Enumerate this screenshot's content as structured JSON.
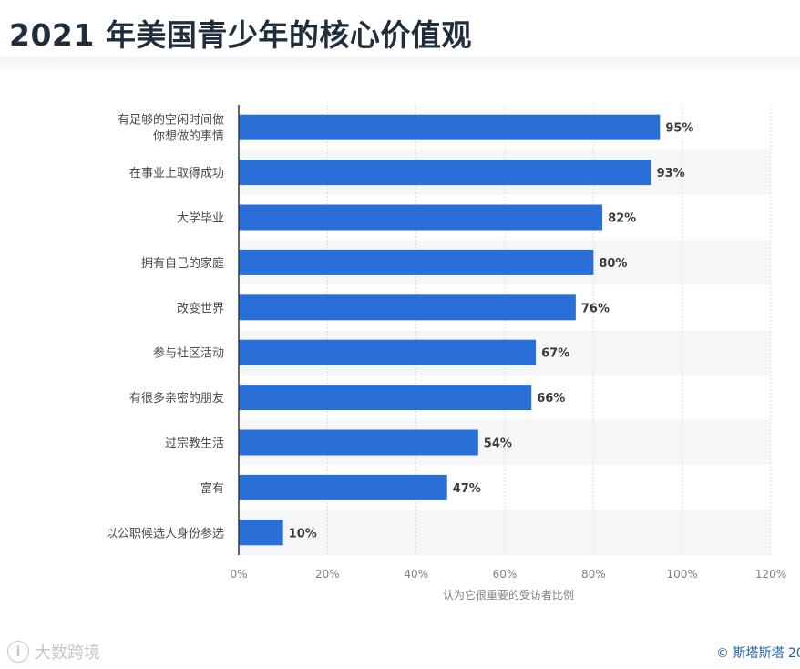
{
  "title": "2021 年美国青少年的核心价值观",
  "watermark": "大数跨境",
  "watermark_logo": "i",
  "source": "© 斯塔斯塔 20",
  "colors": {
    "bar": "#2a6fd8",
    "grid": "#d9dce1",
    "band": "#f5f6f8",
    "text": "#4a4a4a"
  },
  "chart_data": {
    "type": "bar",
    "orientation": "horizontal",
    "categories": [
      "有足够的空闲时间做\n你想做的事情",
      "在事业上取得成功",
      "大学毕业",
      "拥有自己的家庭",
      "改变世界",
      "参与社区活动",
      "有很多亲密的朋友",
      "过宗教生活",
      "富有",
      "以公职候选人身份参选"
    ],
    "values": [
      95,
      93,
      82,
      80,
      76,
      67,
      66,
      54,
      47,
      10
    ],
    "value_labels": [
      "95%",
      "93%",
      "82%",
      "80%",
      "76%",
      "67%",
      "66%",
      "54%",
      "47%",
      "10%"
    ],
    "xlabel": "认为它很重要的受访者比例",
    "xlim": [
      0,
      120
    ],
    "xticks": [
      0,
      20,
      40,
      60,
      80,
      100,
      120
    ],
    "xtick_labels": [
      "0%",
      "20%",
      "40%",
      "60%",
      "80%",
      "100%",
      "120%"
    ],
    "grid": true
  }
}
